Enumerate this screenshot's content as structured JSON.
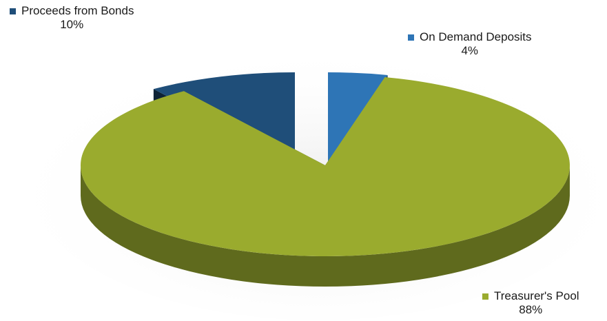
{
  "chart_data": {
    "type": "pie",
    "style": "3d exploded",
    "title": "",
    "slices": [
      {
        "name": "Proceeds from Bonds",
        "value": 10,
        "label": "10%",
        "color": "#1f4e79"
      },
      {
        "name": "On Demand Deposits",
        "value": 4,
        "label": "4%",
        "color": "#2e75b6"
      },
      {
        "name": "Treasurer's Pool",
        "value": 88,
        "label": "88%",
        "color": "#9aab2e"
      }
    ]
  }
}
